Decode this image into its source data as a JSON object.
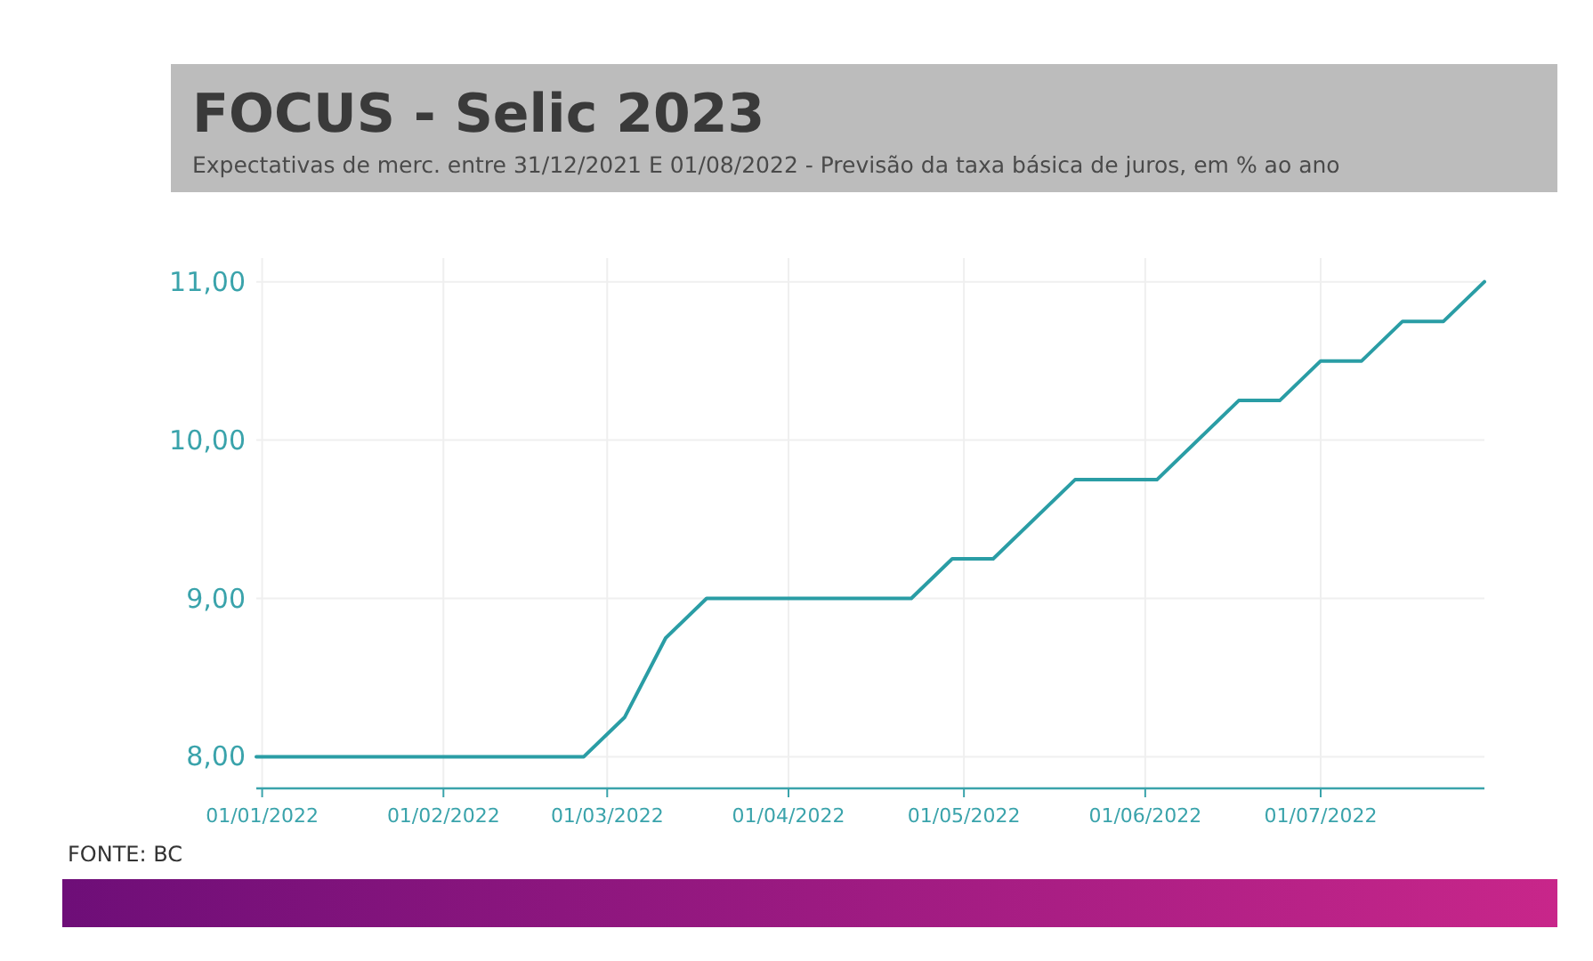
{
  "chart_data": {
    "type": "line",
    "title": "FOCUS - Selic 2023",
    "subtitle": "Expectativas de merc. entre 31/12/2021 E 01/08/2022 - Previsão da taxa básica de juros, em % ao ano",
    "x": [
      "2021-12-31",
      "2022-02-25",
      "2022-03-04",
      "2022-03-11",
      "2022-03-18",
      "2022-04-22",
      "2022-04-29",
      "2022-05-06",
      "2022-05-20",
      "2022-06-03",
      "2022-06-17",
      "2022-06-24",
      "2022-07-01",
      "2022-07-08",
      "2022-07-15",
      "2022-07-22",
      "2022-07-29"
    ],
    "series": [
      {
        "color": "#2a9da5",
        "values": [
          8,
          8,
          8.25,
          8.75,
          9,
          9,
          9.25,
          9.25,
          9.75,
          9.75,
          10.25,
          10.25,
          10.5,
          10.5,
          10.75,
          10.75,
          11
        ]
      }
    ],
    "xlim": [
      "2021-12-31",
      "2022-07-29"
    ],
    "xticks": [
      {
        "value": "2022-01-01",
        "label": "01/01/2022"
      },
      {
        "value": "2022-02-01",
        "label": "01/02/2022"
      },
      {
        "value": "2022-03-01",
        "label": "01/03/2022"
      },
      {
        "value": "2022-04-01",
        "label": "01/04/2022"
      },
      {
        "value": "2022-05-01",
        "label": "01/05/2022"
      },
      {
        "value": "2022-06-01",
        "label": "01/06/2022"
      },
      {
        "value": "2022-07-01",
        "label": "01/07/2022"
      }
    ],
    "ylim": [
      7.8,
      11.15
    ],
    "yticks": [
      {
        "value": 8,
        "label": "8,00"
      },
      {
        "value": 9,
        "label": "9,00"
      },
      {
        "value": 10,
        "label": "10,00"
      },
      {
        "value": 11,
        "label": "11,00"
      }
    ],
    "grid": true,
    "marker": "none",
    "line_style": "solid",
    "annotations": [
      "FONTE: BC"
    ]
  }
}
